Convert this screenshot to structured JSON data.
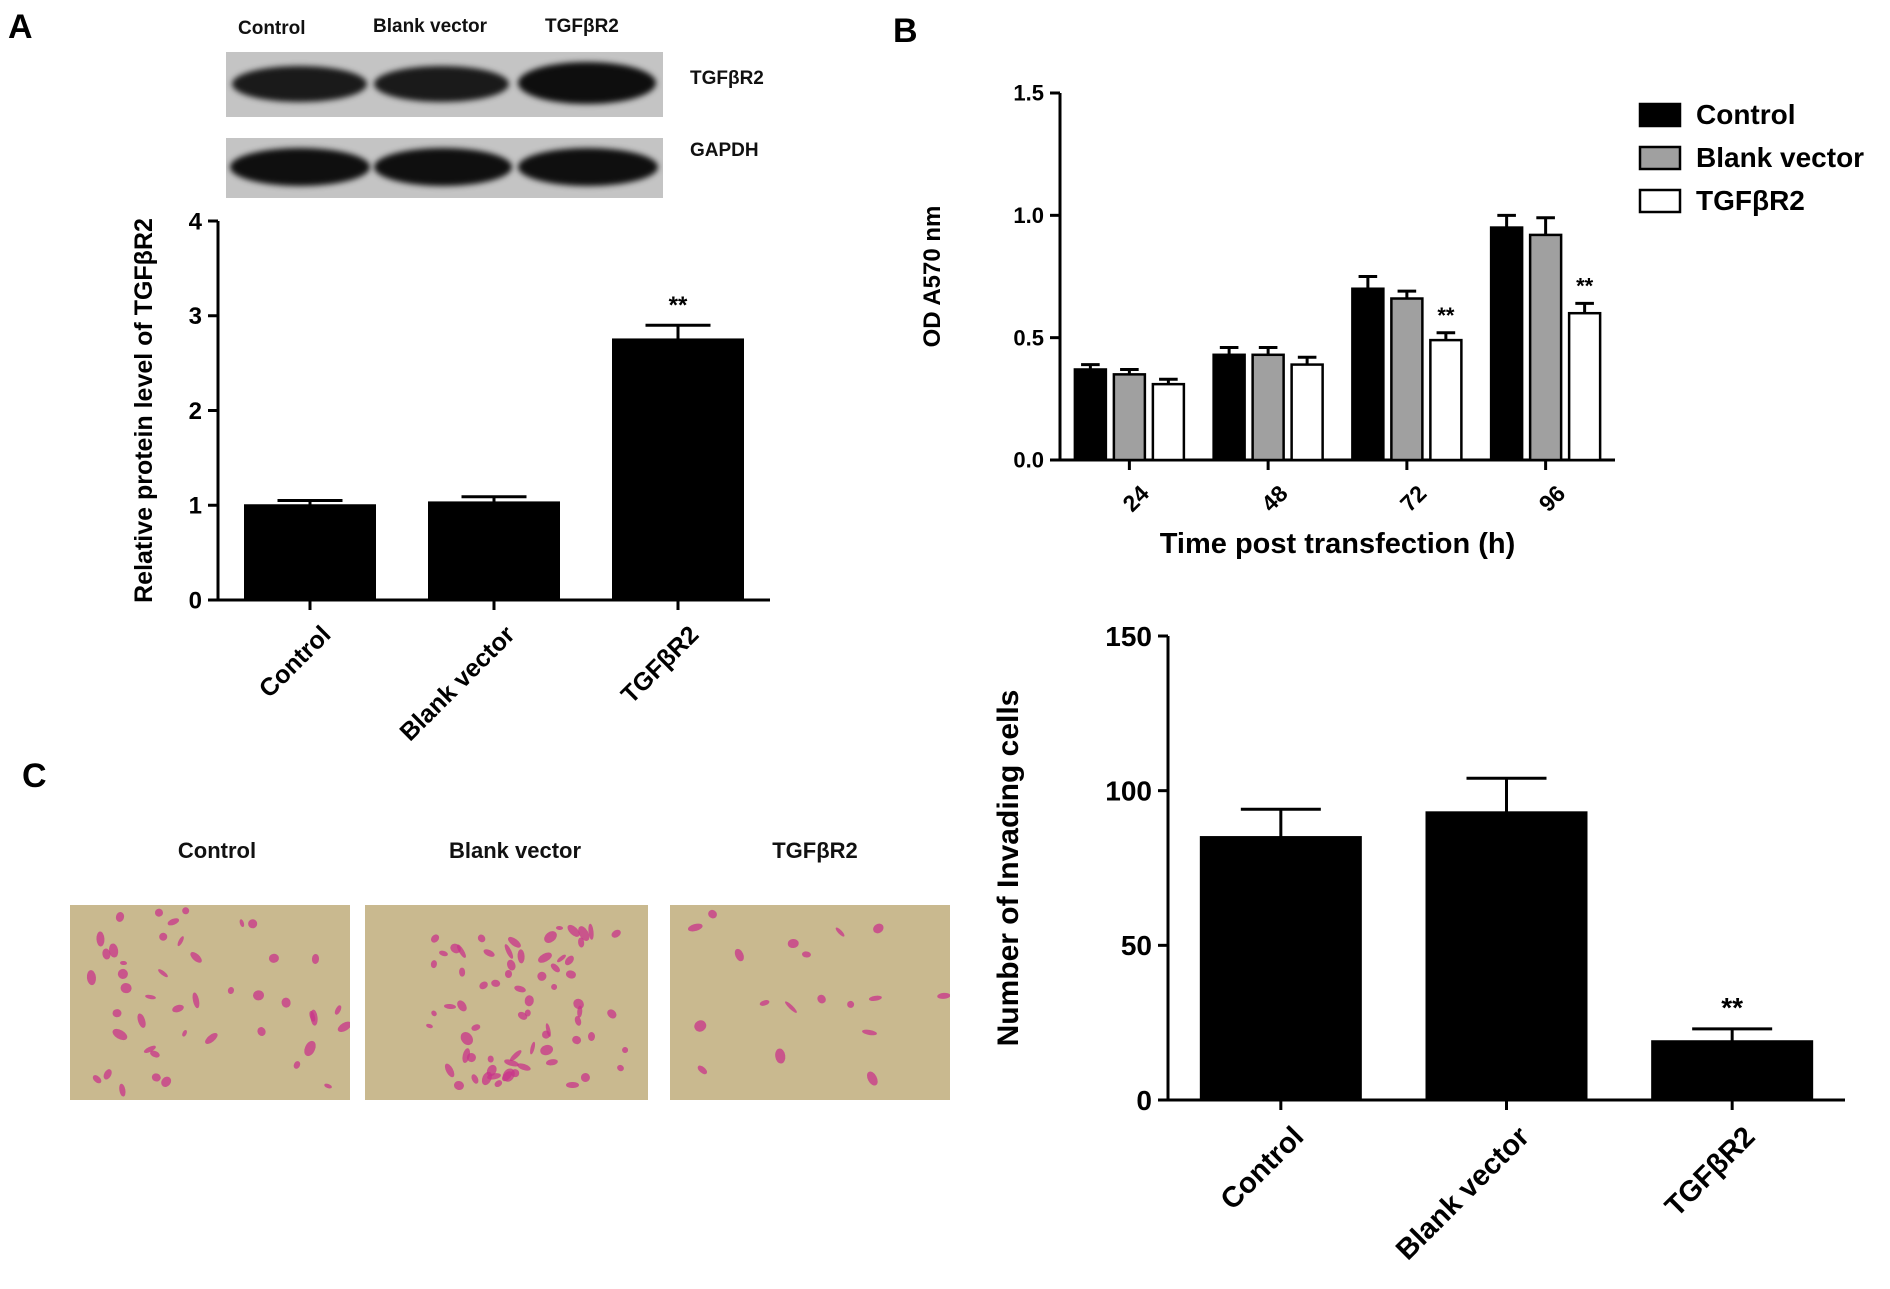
{
  "panel_labels": {
    "a": "A",
    "b": "B",
    "c": "C"
  },
  "blot": {
    "columns": [
      "Control",
      "Blank vector",
      "TGFβR2"
    ],
    "rows": [
      "TGFβR2",
      "GAPDH"
    ]
  },
  "micrographs": {
    "labels": [
      "Control",
      "Blank vector",
      "TGFβR2"
    ],
    "stain_color": "#c8348a",
    "background_color": "#c9b98f"
  },
  "chart_data": [
    {
      "id": "panelA",
      "type": "bar",
      "categories": [
        "Control",
        "Blank vector",
        "TGFβR2"
      ],
      "values": [
        1.0,
        1.03,
        2.75
      ],
      "errors": [
        0.05,
        0.06,
        0.15
      ],
      "significance": [
        "",
        "",
        "**"
      ],
      "ylabel": "Relative protein level of TGFβR2",
      "xlabel": "",
      "ylim": [
        0,
        4
      ],
      "yticks": [
        "0",
        "1",
        "2",
        "3",
        "4"
      ],
      "bar_color": "#000000"
    },
    {
      "id": "panelB",
      "type": "bar",
      "categories": [
        "24",
        "48",
        "72",
        "96"
      ],
      "series": [
        {
          "name": "Control",
          "values": [
            0.37,
            0.43,
            0.7,
            0.95
          ],
          "errors": [
            0.02,
            0.03,
            0.05,
            0.05
          ],
          "color": "#000000"
        },
        {
          "name": "Blank vector",
          "values": [
            0.35,
            0.43,
            0.66,
            0.92
          ],
          "errors": [
            0.02,
            0.03,
            0.03,
            0.07
          ],
          "color": "#a0a0a0"
        },
        {
          "name": "TGFβR2",
          "values": [
            0.31,
            0.39,
            0.49,
            0.6
          ],
          "errors": [
            0.02,
            0.03,
            0.03,
            0.04
          ],
          "color": "#ffffff"
        }
      ],
      "significance": [
        "",
        "",
        "**",
        "**"
      ],
      "ylabel": "OD A570 nm",
      "xlabel": "Time post transfection (h)",
      "ylim": [
        0,
        1.5
      ],
      "yticks": [
        "0.0",
        "0.5",
        "1.0",
        "1.5"
      ],
      "legend_position": "top-right"
    },
    {
      "id": "panelC",
      "type": "bar",
      "categories": [
        "Control",
        "Blank vector",
        "TGFβR2"
      ],
      "values": [
        85,
        93,
        19
      ],
      "errors": [
        9,
        11,
        4
      ],
      "significance": [
        "",
        "",
        "**"
      ],
      "ylabel": "Number of Invading cells",
      "xlabel": "",
      "ylim": [
        0,
        150
      ],
      "yticks": [
        "0",
        "50",
        "100",
        "150"
      ],
      "bar_color": "#000000"
    }
  ]
}
